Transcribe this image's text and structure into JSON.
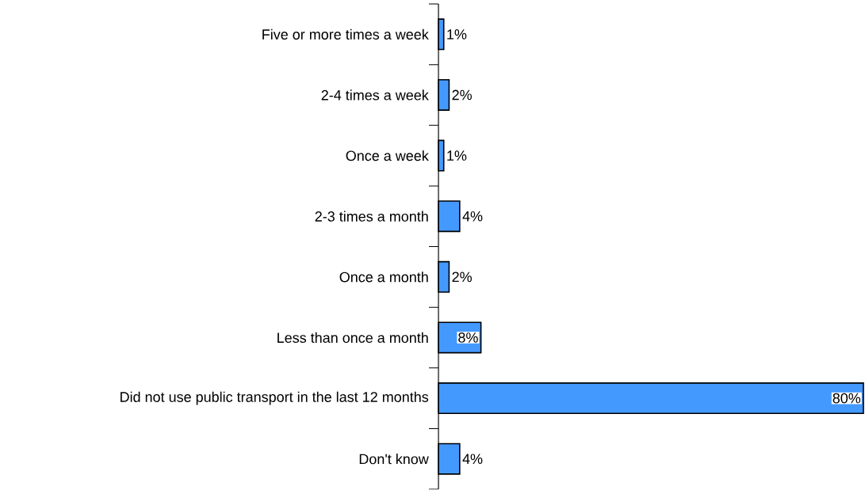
{
  "chart_data": {
    "type": "bar",
    "orientation": "horizontal",
    "categories": [
      "Five or more times a week",
      "2-4 times a week",
      "Once a week",
      "2-3 times a month",
      "Once a month",
      "Less than once a month",
      "Did not use public transport in the last 12 months",
      "Don't know"
    ],
    "values": [
      1,
      2,
      1,
      4,
      2,
      8,
      80,
      4
    ],
    "value_labels": [
      "1%",
      "2%",
      "1%",
      "4%",
      "2%",
      "8%",
      "80%",
      "4%"
    ],
    "color": "#4499ff"
  }
}
